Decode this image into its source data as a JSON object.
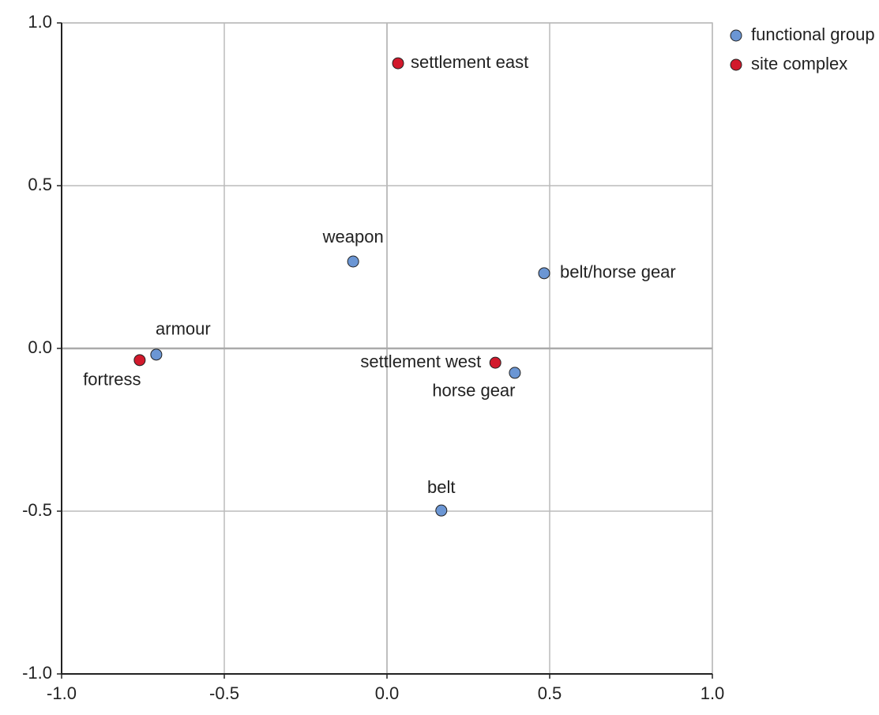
{
  "chart_data": {
    "type": "scatter",
    "xlim": [
      -1,
      1
    ],
    "ylim": [
      -1,
      1
    ],
    "xticks": [
      {
        "value": -1,
        "label": "-1.0"
      },
      -0.5,
      {
        "value": 0,
        "label": "0.0"
      },
      0.5,
      {
        "value": 1,
        "label": "1.0"
      }
    ],
    "yticks": [
      {
        "value": -1,
        "label": "-1.0"
      },
      -0.5,
      {
        "value": 0,
        "label": "0.0"
      },
      0.5,
      {
        "value": 1,
        "label": "1.0"
      }
    ],
    "grid": true,
    "legend": "right",
    "series": [
      {
        "name": "functional group",
        "color": "#6b96d4",
        "labels": [
          "weapon",
          "belt/horse gear",
          "armour",
          "horse gear",
          "belt"
        ],
        "x": [
          -0.104,
          0.483,
          -0.709,
          0.393,
          0.167
        ],
        "values": [
          0.267,
          0.231,
          -0.019,
          -0.075,
          -0.498
        ]
      },
      {
        "name": "site complex",
        "color": "#d2192c",
        "labels": [
          "settlement east",
          "fortress",
          "settlement west"
        ],
        "x": [
          0.034,
          -0.76,
          0.333
        ],
        "values": [
          0.876,
          -0.036,
          -0.044
        ]
      }
    ]
  }
}
